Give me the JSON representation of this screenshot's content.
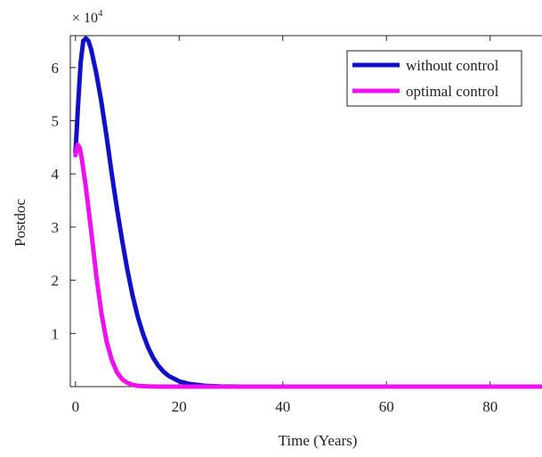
{
  "chart_data": {
    "type": "line",
    "xlabel": "Time (Years)",
    "ylabel": "Postdoc",
    "y_multiplier_base": "× 10",
    "y_multiplier_exp": "4",
    "xlim": [
      -1,
      90
    ],
    "ylim": [
      0,
      6.6
    ],
    "x_ticks": [
      {
        "value": 0,
        "label": "0"
      },
      {
        "value": 20,
        "label": "20"
      },
      {
        "value": 40,
        "label": "40"
      },
      {
        "value": 60,
        "label": "60"
      },
      {
        "value": 80,
        "label": "80"
      }
    ],
    "y_ticks": [
      {
        "value": 1,
        "label": "1"
      },
      {
        "value": 2,
        "label": "2"
      },
      {
        "value": 3,
        "label": "3"
      },
      {
        "value": 4,
        "label": "4"
      },
      {
        "value": 5,
        "label": "5"
      },
      {
        "value": 6,
        "label": "6"
      }
    ],
    "grid": false,
    "legend_position": "top-right",
    "series": [
      {
        "name": "without control",
        "color": "#1010c8",
        "points": [
          [
            0,
            4.4
          ],
          [
            0.5,
            5.3
          ],
          [
            1,
            6.1
          ],
          [
            1.5,
            6.5
          ],
          [
            2,
            6.55
          ],
          [
            2.5,
            6.5
          ],
          [
            3,
            6.35
          ],
          [
            4,
            5.9
          ],
          [
            5,
            5.35
          ],
          [
            6,
            4.7
          ],
          [
            7,
            4.0
          ],
          [
            8,
            3.35
          ],
          [
            9,
            2.75
          ],
          [
            10,
            2.2
          ],
          [
            11,
            1.72
          ],
          [
            12,
            1.32
          ],
          [
            13,
            1.0
          ],
          [
            14,
            0.74
          ],
          [
            15,
            0.54
          ],
          [
            16,
            0.39
          ],
          [
            17,
            0.28
          ],
          [
            18,
            0.2
          ],
          [
            20,
            0.1
          ],
          [
            22,
            0.05
          ],
          [
            25,
            0.015
          ],
          [
            28,
            0.004
          ],
          [
            32,
            0.001
          ],
          [
            40,
            0
          ],
          [
            60,
            0
          ],
          [
            90,
            0
          ]
        ]
      },
      {
        "name": "optimal control",
        "color": "#ee10ee",
        "points": [
          [
            0,
            4.35
          ],
          [
            0.4,
            4.55
          ],
          [
            0.8,
            4.5
          ],
          [
            1.2,
            4.3
          ],
          [
            2,
            3.75
          ],
          [
            3,
            2.95
          ],
          [
            4,
            2.1
          ],
          [
            5,
            1.38
          ],
          [
            6,
            0.85
          ],
          [
            7,
            0.5
          ],
          [
            8,
            0.27
          ],
          [
            9,
            0.14
          ],
          [
            10,
            0.07
          ],
          [
            11,
            0.035
          ],
          [
            12,
            0.015
          ],
          [
            14,
            0.004
          ],
          [
            16,
            0.001
          ],
          [
            20,
            0
          ],
          [
            40,
            0
          ],
          [
            60,
            0
          ],
          [
            90,
            0
          ]
        ]
      }
    ]
  }
}
